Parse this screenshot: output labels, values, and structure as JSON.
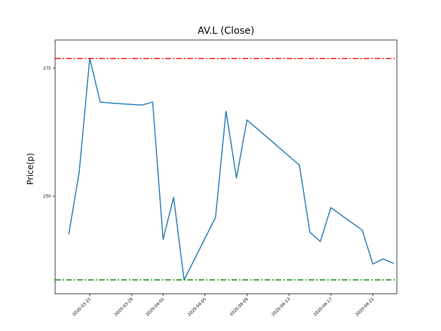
{
  "chart_data": {
    "type": "line",
    "title": "AV.L (Close)",
    "xlabel": "",
    "ylabel": "Price(p)",
    "x_tick_labels": [
      "2020-03-25",
      "2020-03-29",
      "2020-04-01",
      "2020-04-05",
      "2020-04-09",
      "2020-04-13",
      "2020-04-17",
      "2020-04-21"
    ],
    "y_ticks": [
      250,
      275
    ],
    "xlim": [
      "2020-03-22",
      "2020-04-23"
    ],
    "ylim": [
      231.0,
      280.5
    ],
    "grid": false,
    "series": [
      {
        "color": "#1f77b4",
        "x": [
          "2020-03-23",
          "2020-03-24",
          "2020-03-25",
          "2020-03-26",
          "2020-03-27",
          "2020-03-30",
          "2020-03-31",
          "2020-04-01",
          "2020-04-02",
          "2020-04-03",
          "2020-04-06",
          "2020-04-07",
          "2020-04-08",
          "2020-04-09",
          "2020-04-14",
          "2020-04-15",
          "2020-04-16",
          "2020-04-17",
          "2020-04-20",
          "2020-04-21",
          "2020-04-22",
          "2020-04-23"
        ],
        "y": [
          242.6,
          254.8,
          276.9,
          268.4,
          268.2,
          267.8,
          268.4,
          241.6,
          249.8,
          233.7,
          245.9,
          266.6,
          253.6,
          264.9,
          256.1,
          243.0,
          241.2,
          247.8,
          243.4,
          236.8,
          237.8,
          236.9
        ]
      }
    ],
    "reference_lines": [
      {
        "y": 276.9,
        "color": "#ff0000",
        "style": "dashdot"
      },
      {
        "y": 233.7,
        "color": "#008000",
        "style": "dashdot"
      }
    ]
  }
}
